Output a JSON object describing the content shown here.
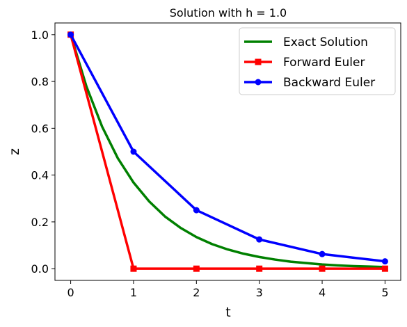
{
  "chart_data": {
    "type": "line",
    "title": "Solution with h = 1.0",
    "xlabel": "t",
    "ylabel": "z",
    "xlim": [
      -0.25,
      5.25
    ],
    "ylim": [
      -0.05,
      1.05
    ],
    "x_ticks": [
      0,
      1,
      2,
      3,
      4,
      5
    ],
    "y_ticks": [
      0.0,
      0.2,
      0.4,
      0.6,
      0.8,
      1.0
    ],
    "x_tick_labels": [
      "0",
      "1",
      "2",
      "3",
      "4",
      "5"
    ],
    "y_tick_labels": [
      "0.0",
      "0.2",
      "0.4",
      "0.6",
      "0.8",
      "1.0"
    ],
    "grid": false,
    "legend_position": "top-right",
    "series": [
      {
        "name": "Exact Solution",
        "color": "#008000",
        "marker": "none",
        "x": [
          0,
          0.25,
          0.5,
          0.75,
          1,
          1.25,
          1.5,
          1.75,
          2,
          2.25,
          2.5,
          2.75,
          3,
          3.25,
          3.5,
          3.75,
          4,
          4.25,
          4.5,
          4.75,
          5
        ],
        "values": [
          1.0,
          0.779,
          0.607,
          0.472,
          0.368,
          0.287,
          0.223,
          0.174,
          0.135,
          0.105,
          0.082,
          0.064,
          0.05,
          0.039,
          0.03,
          0.024,
          0.018,
          0.014,
          0.011,
          0.009,
          0.007
        ]
      },
      {
        "name": "Forward Euler",
        "color": "#ff0000",
        "marker": "square",
        "x": [
          0,
          1,
          2,
          3,
          4,
          5
        ],
        "values": [
          1.0,
          0.0,
          0.0,
          0.0,
          0.0,
          0.0
        ]
      },
      {
        "name": "Backward Euler",
        "color": "#0000ff",
        "marker": "circle",
        "x": [
          0,
          1,
          2,
          3,
          4,
          5
        ],
        "values": [
          1.0,
          0.5,
          0.25,
          0.125,
          0.0625,
          0.03125
        ]
      }
    ]
  }
}
